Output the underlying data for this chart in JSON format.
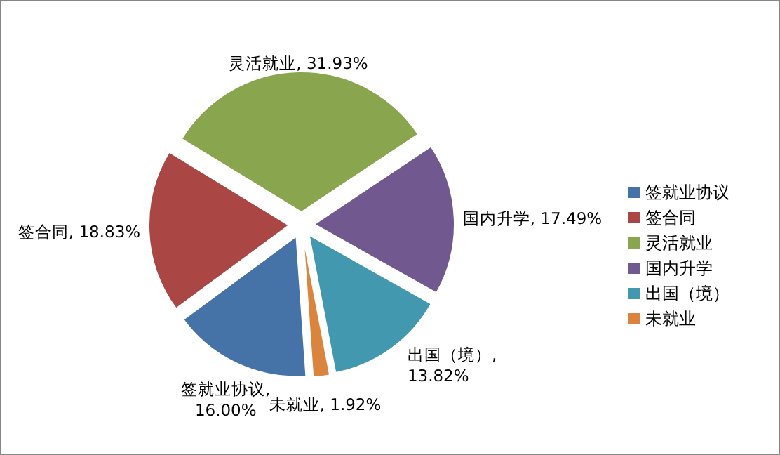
{
  "chart_data": {
    "type": "pie",
    "categories": [
      "签就业协议",
      "签合同",
      "灵活就业",
      "国内升学",
      "出国（境）",
      "未就业"
    ],
    "values": [
      16.0,
      18.83,
      31.93,
      17.49,
      13.82,
      1.92
    ],
    "value_labels": [
      "签就业协议, 16.00%",
      "签合同, 18.83%",
      "灵活就业, 31.93%",
      "国内升学, 17.49%",
      "出国（境）, 13.82%",
      "未就业, 1.92%"
    ],
    "colors": [
      "#4572a7",
      "#aa4643",
      "#89a54e",
      "#71588f",
      "#4198af",
      "#db843d"
    ],
    "legend": "right"
  }
}
